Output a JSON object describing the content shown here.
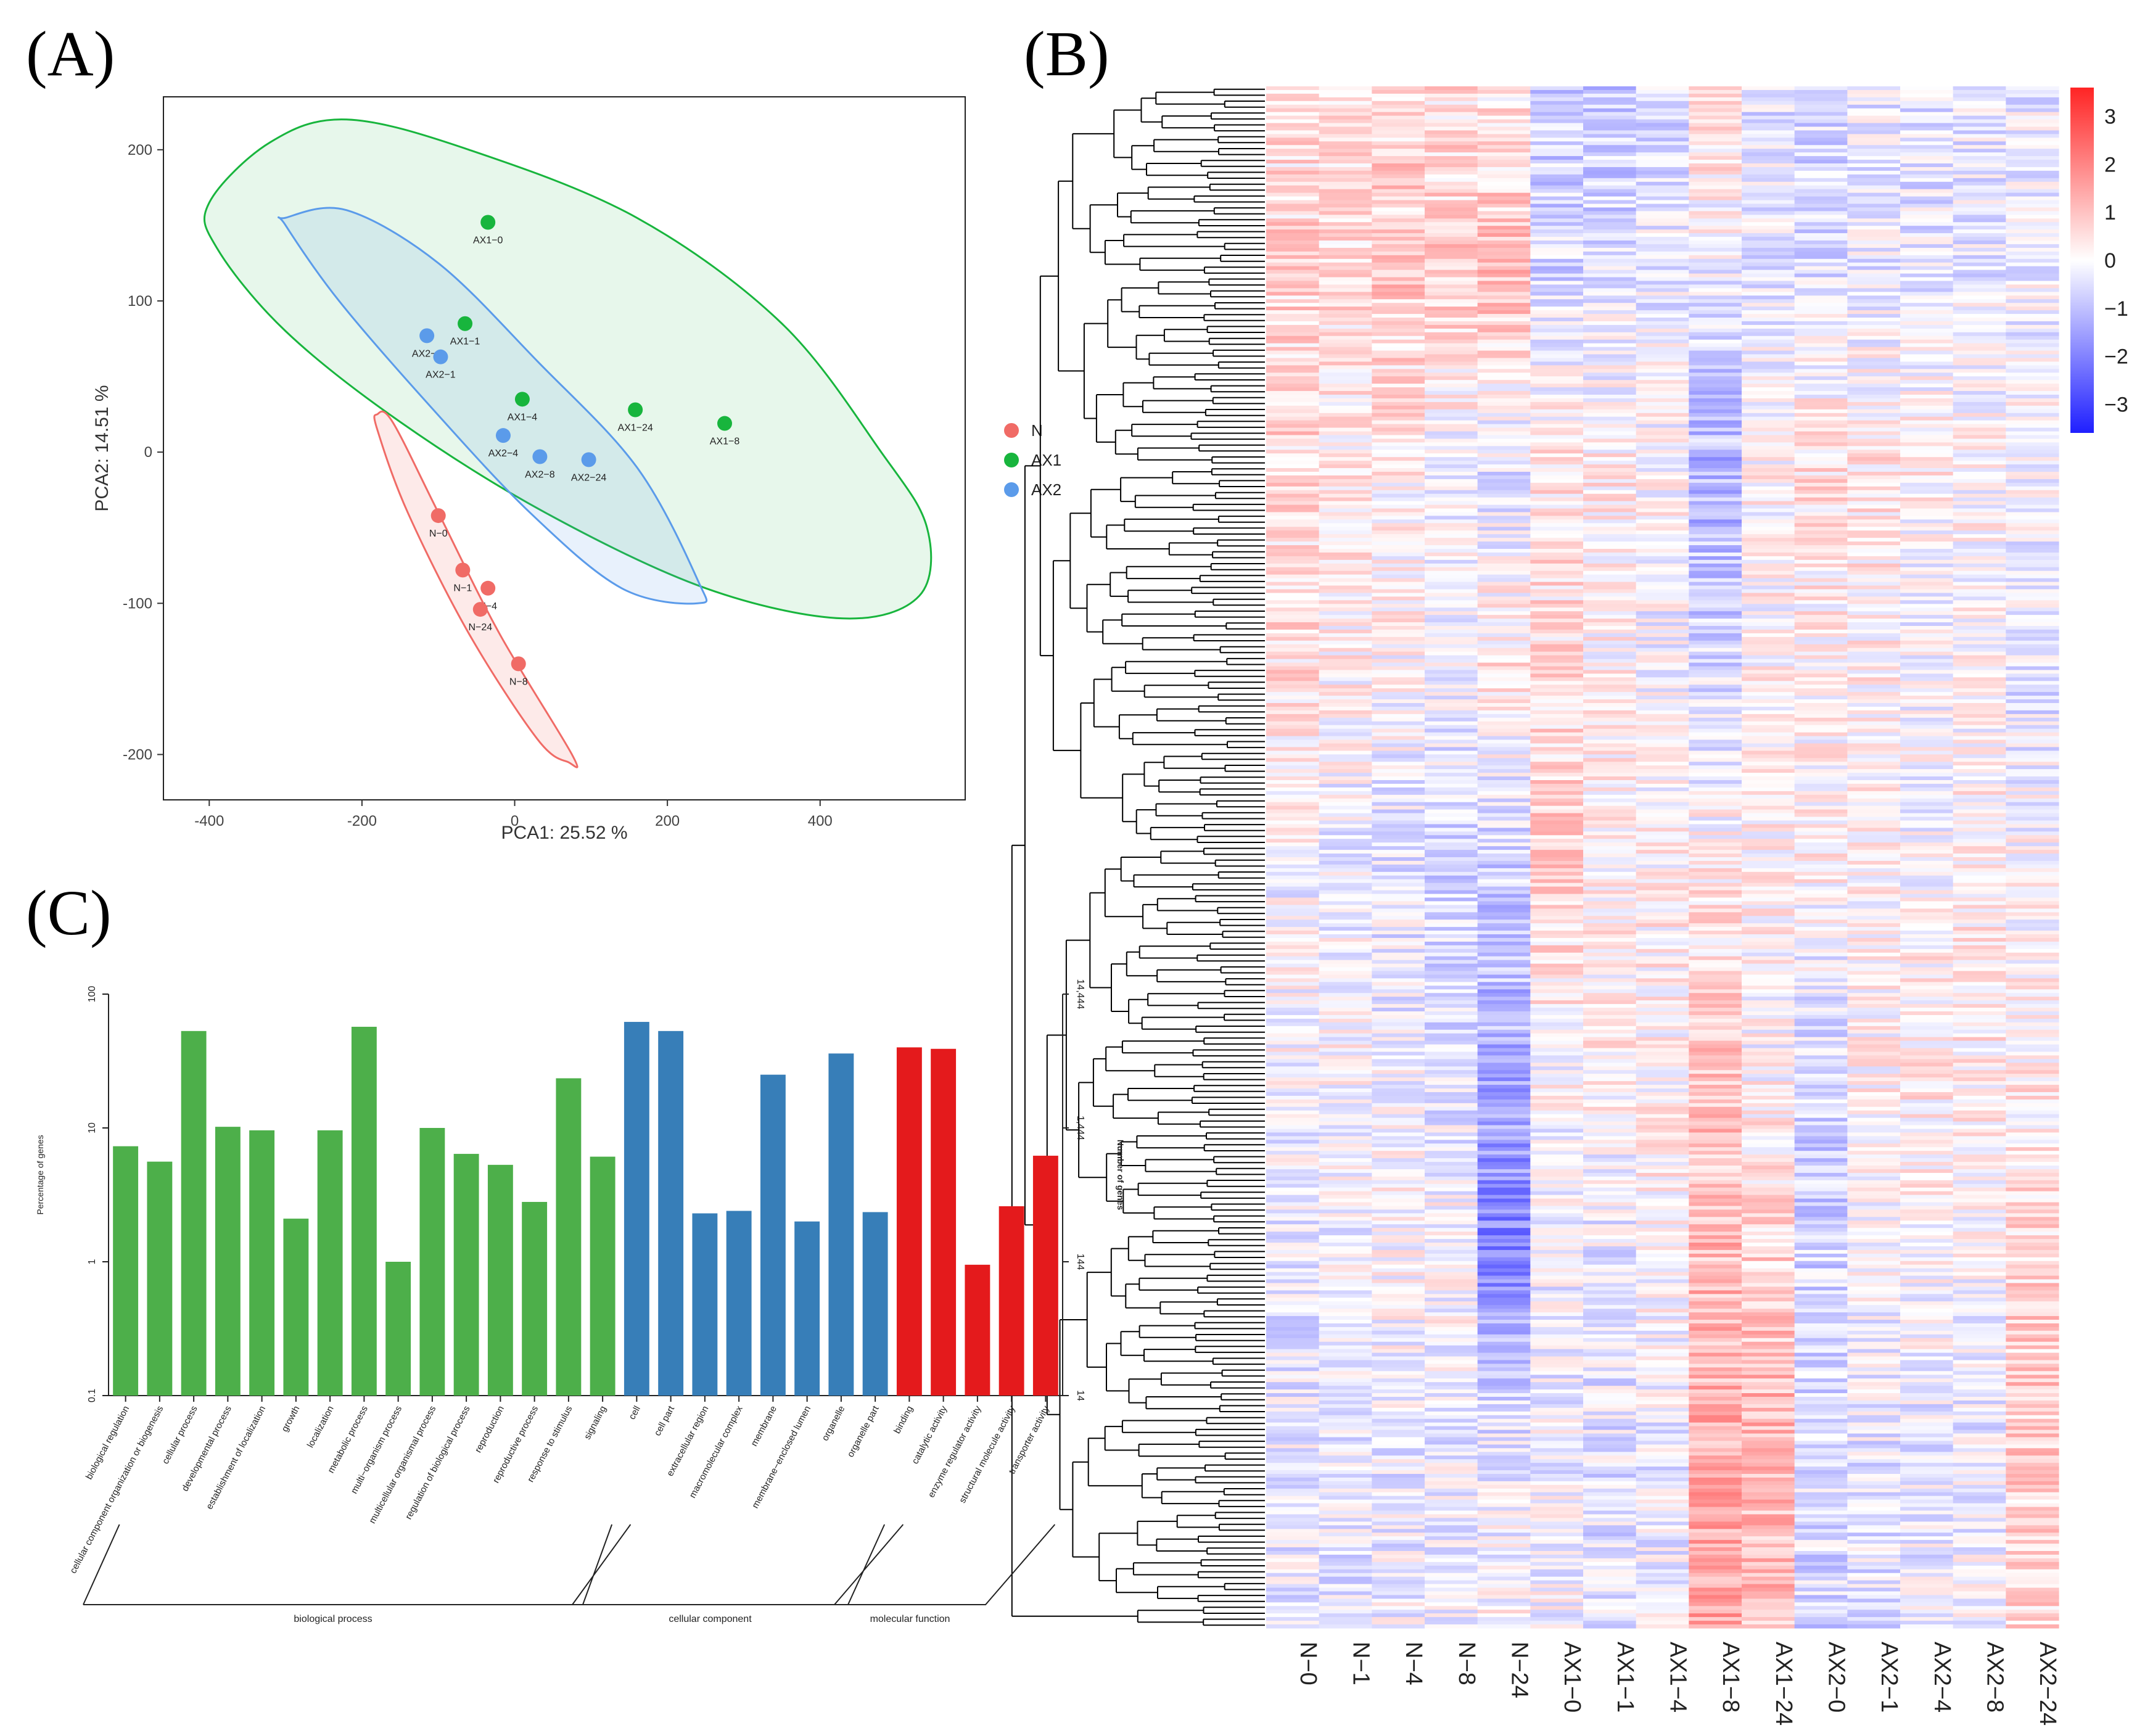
{
  "panels": {
    "a": "(A)",
    "b": "(B)",
    "c": "(C)"
  },
  "chart_data": [
    {
      "type": "scatter",
      "panel": "(A)",
      "xlabel": "PCA1: 25.52 %",
      "ylabel": "PCA2: 14.51 %",
      "xlim": [
        -460,
        590
      ],
      "ylim": [
        -230,
        235
      ],
      "xticks": [
        -400,
        -200,
        0,
        200,
        400
      ],
      "yticks": [
        -200,
        -100,
        0,
        100,
        200
      ],
      "legend": {
        "position": "right",
        "entries": [
          {
            "name": "N",
            "color": "#f06b66"
          },
          {
            "name": "AX1",
            "color": "#18b53d"
          },
          {
            "name": "AX2",
            "color": "#5b9bea"
          }
        ]
      },
      "points": [
        {
          "label": "AX1−0",
          "group": "AX1",
          "x": -35,
          "y": 152
        },
        {
          "label": "AX1−1",
          "group": "AX1",
          "x": -65,
          "y": 85
        },
        {
          "label": "AX1−4",
          "group": "AX1",
          "x": 10,
          "y": 35
        },
        {
          "label": "AX1−24",
          "group": "AX1",
          "x": 158,
          "y": 28
        },
        {
          "label": "AX1−8",
          "group": "AX1",
          "x": 275,
          "y": 19
        },
        {
          "label": "AX2−0",
          "group": "AX2",
          "x": -115,
          "y": 77
        },
        {
          "label": "AX2−1",
          "group": "AX2",
          "x": -97,
          "y": 63
        },
        {
          "label": "AX2−4",
          "group": "AX2",
          "x": -15,
          "y": 11
        },
        {
          "label": "AX2−8",
          "group": "AX2",
          "x": 33,
          "y": -3
        },
        {
          "label": "AX2−24",
          "group": "AX2",
          "x": 97,
          "y": -5
        },
        {
          "label": "N−0",
          "group": "N",
          "x": -100,
          "y": -42
        },
        {
          "label": "N−1",
          "group": "N",
          "x": -68,
          "y": -78
        },
        {
          "label": "N−4",
          "group": "N",
          "x": -35,
          "y": -90
        },
        {
          "label": "N−24",
          "group": "N",
          "x": -45,
          "y": -104
        },
        {
          "label": "N−8",
          "group": "N",
          "x": 5,
          "y": -140
        }
      ],
      "ellipses": [
        {
          "group": "AX1",
          "points": [
            [
              -400,
              165
            ],
            [
              -320,
              205
            ],
            [
              -220,
              220
            ],
            [
              -60,
              200
            ],
            [
              160,
              155
            ],
            [
              350,
              85
            ],
            [
              480,
              0
            ],
            [
              540,
              -50
            ],
            [
              530,
              -95
            ],
            [
              430,
              -110
            ],
            [
              250,
              -90
            ],
            [
              40,
              -40
            ],
            [
              -150,
              20
            ],
            [
              -300,
              80
            ],
            [
              -390,
              135
            ]
          ]
        },
        {
          "group": "AX2",
          "points": [
            [
              -300,
              155
            ],
            [
              -220,
              160
            ],
            [
              -100,
              125
            ],
            [
              30,
              60
            ],
            [
              160,
              -10
            ],
            [
              240,
              -85
            ],
            [
              240,
              -100
            ],
            [
              140,
              -90
            ],
            [
              20,
              -40
            ],
            [
              -110,
              30
            ],
            [
              -230,
              100
            ],
            [
              -300,
              150
            ]
          ]
        },
        {
          "group": "N",
          "points": [
            [
              -180,
              25
            ],
            [
              -160,
              20
            ],
            [
              -100,
              -40
            ],
            [
              -20,
              -120
            ],
            [
              75,
              -200
            ],
            [
              70,
              -205
            ],
            [
              30,
              -190
            ],
            [
              -60,
              -120
            ],
            [
              -140,
              -40
            ],
            [
              -180,
              15
            ]
          ]
        }
      ]
    },
    {
      "type": "heatmap",
      "panel": "(B)",
      "columns": [
        "N−0",
        "N−1",
        "N−4",
        "N−8",
        "N−24",
        "AX1−0",
        "AX1−1",
        "AX1−4",
        "AX1−8",
        "AX1−24",
        "AX2−0",
        "AX2−1",
        "AX2−4",
        "AX2−8",
        "AX2−24"
      ],
      "row_dendrogram": true,
      "colorbar": {
        "min": -3.6,
        "max": 3.6,
        "ticks": [
          3,
          2,
          1,
          0,
          -1,
          -2,
          -3
        ],
        "colors": [
          "#1f1fff",
          "#ffffff",
          "#ff2424"
        ]
      },
      "column_blocks": [
        [
          0.4,
          0.5,
          0.6,
          0.5,
          0.3,
          -0.8,
          -1.0,
          -0.5,
          0.6,
          -0.4,
          -0.7,
          -0.3,
          -0.5,
          -0.3,
          -0.3
        ],
        [
          0.7,
          0.6,
          0.9,
          0.9,
          1.1,
          -0.6,
          -0.4,
          -0.3,
          -0.2,
          -0.3,
          -0.4,
          -0.3,
          -0.3,
          -0.3,
          -0.2
        ],
        [
          0.6,
          0.3,
          0.2,
          -0.2,
          -0.4,
          0.4,
          0.3,
          0.1,
          -1.2,
          0.1,
          0.5,
          0.4,
          0.2,
          0.1,
          0.0
        ],
        [
          0.5,
          0.2,
          0.1,
          -0.1,
          0.4,
          0.5,
          0.1,
          -0.2,
          -0.6,
          0.1,
          0.1,
          0.2,
          -0.2,
          0.0,
          -0.5
        ],
        [
          -0.1,
          -0.3,
          -0.4,
          -0.6,
          -0.7,
          0.8,
          0.2,
          0.2,
          0.2,
          0.2,
          0.2,
          0.1,
          0.0,
          0.2,
          0.0
        ],
        [
          0.0,
          0.1,
          -0.2,
          -0.5,
          -1.2,
          0.1,
          0.2,
          0.2,
          0.8,
          0.0,
          -0.6,
          0.2,
          0.3,
          0.3,
          0.2
        ],
        [
          -0.4,
          -0.2,
          0.1,
          0.1,
          -2.0,
          -0.3,
          -0.3,
          0.2,
          1.1,
          0.7,
          -0.7,
          0.0,
          0.1,
          0.0,
          0.6
        ],
        [
          -0.3,
          -0.4,
          -0.3,
          -0.3,
          -0.4,
          -0.2,
          -0.4,
          -0.3,
          1.3,
          1.2,
          -0.4,
          -0.3,
          -0.3,
          -0.3,
          0.9
        ],
        [
          -0.3,
          -0.3,
          -0.2,
          -0.2,
          0.1,
          -0.1,
          -0.5,
          -0.2,
          1.4,
          1.0,
          -0.6,
          -0.4,
          -0.2,
          -0.1,
          0.6
        ]
      ]
    },
    {
      "type": "bar",
      "panel": "(C)",
      "ylabel": "Percentage of genes",
      "y2label": "Number of genes",
      "yscale": "log",
      "ylim": [
        0.1,
        100
      ],
      "yticks": [
        "100",
        "10",
        "1",
        "0.1"
      ],
      "y2ticks": [
        "14,444",
        "1,444",
        "144",
        "14"
      ],
      "categories": [
        "biological regulation",
        "cellular component organization or biogenesis",
        "cellular process",
        "developmental process",
        "establishment of localization",
        "growth",
        "localization",
        "metabolic process",
        "multi−organism process",
        "multicellular organismal process",
        "regulation of biological process",
        "reproduction",
        "reproductive process",
        "response to stimulus",
        "signaling",
        "cell",
        "cell part",
        "extracellular region",
        "macromolecular complex",
        "membrane",
        "membrane−enclosed lumen",
        "organelle",
        "organelle part",
        "binding",
        "catalytic activity",
        "enzyme regulator activity",
        "structural molecule activity",
        "transporter activity"
      ],
      "values": [
        7.3,
        5.6,
        53,
        10.2,
        9.6,
        2.1,
        9.6,
        57,
        1.0,
        10.0,
        6.4,
        5.3,
        2.8,
        23.5,
        6.1,
        62,
        53,
        2.3,
        2.4,
        25,
        2.0,
        36,
        2.35,
        40,
        39,
        0.95,
        2.6,
        6.2
      ],
      "groups": [
        {
          "name": "biological process",
          "start": 0,
          "end": 14,
          "color": "#4daf4a"
        },
        {
          "name": "cellular component",
          "start": 15,
          "end": 22,
          "color": "#377eb8"
        },
        {
          "name": "molecular function",
          "start": 23,
          "end": 27,
          "color": "#e41a1c"
        }
      ]
    }
  ]
}
